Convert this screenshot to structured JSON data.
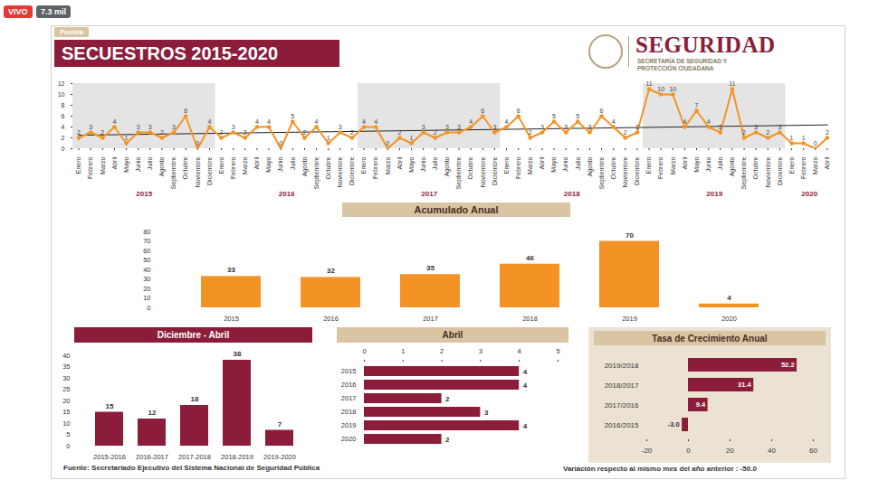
{
  "stream": {
    "live": "VIVO",
    "viewers": "7.3 mil"
  },
  "header": {
    "tag": "Puebla",
    "title": "SECUESTROS 2015-2020",
    "logo": "SEGURIDAD",
    "logo_subtitle": "SECRETARÍA DE SEGURIDAD Y PROTECCIÓN CIUDADANA"
  },
  "chart_data": [
    {
      "type": "line",
      "categories": [
        "Enero",
        "Febrero",
        "Marzo",
        "Abril",
        "Mayo",
        "Junio",
        "Julio",
        "Agosto",
        "Septiembre",
        "Octubre",
        "Noviembre",
        "Diciembre",
        "Enero",
        "Febrero",
        "Marzo",
        "Abril",
        "Mayo",
        "Junio",
        "Julio",
        "Agosto",
        "Septiembre",
        "Octubre",
        "Noviembre",
        "Diciembre",
        "Enero",
        "Febrero",
        "Marzo",
        "Abril",
        "Mayo",
        "Junio",
        "Julio",
        "Agosto",
        "Septiembre",
        "Octubre",
        "Noviembre",
        "Diciembre",
        "Enero",
        "Febrero",
        "Marzo",
        "Abril",
        "Mayo",
        "Junio",
        "Julio",
        "Agosto",
        "Septiembre",
        "Octubre",
        "Noviembre",
        "Diciembre",
        "Enero",
        "Febrero",
        "Marzo",
        "Abril",
        "Mayo",
        "Junio",
        "Julio",
        "Agosto",
        "Septiembre",
        "Octubre",
        "Noviembre",
        "Diciembre",
        "Enero",
        "Febrero",
        "Marzo",
        "Abril"
      ],
      "years": [
        "2015",
        "2015",
        "2015",
        "2015",
        "2015",
        "2015",
        "2015",
        "2015",
        "2015",
        "2015",
        "2015",
        "2015",
        "2016",
        "2016",
        "2016",
        "2016",
        "2016",
        "2016",
        "2016",
        "2016",
        "2016",
        "2016",
        "2016",
        "2016",
        "2017",
        "2017",
        "2017",
        "2017",
        "2017",
        "2017",
        "2017",
        "2017",
        "2017",
        "2017",
        "2017",
        "2017",
        "2018",
        "2018",
        "2018",
        "2018",
        "2018",
        "2018",
        "2018",
        "2018",
        "2018",
        "2018",
        "2018",
        "2018",
        "2019",
        "2019",
        "2019",
        "2019",
        "2019",
        "2019",
        "2019",
        "2019",
        "2019",
        "2019",
        "2019",
        "2019",
        "2020",
        "2020",
        "2020",
        "2020"
      ],
      "values": [
        2,
        3,
        2,
        4,
        1,
        3,
        3,
        2,
        3,
        6,
        0,
        4,
        2,
        3,
        2,
        4,
        4,
        0,
        5,
        2,
        4,
        1,
        3,
        2,
        4,
        4,
        0,
        2,
        1,
        3,
        2,
        3,
        3,
        4,
        6,
        3,
        4,
        6,
        2,
        3,
        5,
        3,
        5,
        3,
        6,
        4,
        2,
        3,
        11,
        10,
        10,
        4,
        7,
        4,
        3,
        11,
        2,
        3,
        2,
        3,
        1,
        1,
        0,
        2
      ],
      "color": "#f39325",
      "marker": "circle",
      "ylim": [
        0,
        12
      ],
      "yticks": [
        0,
        2,
        4,
        6,
        8,
        10,
        12
      ],
      "data_labels": true
    },
    {
      "type": "bar",
      "title": "Acumulado Anual",
      "categories": [
        "2015",
        "2016",
        "2017",
        "2018",
        "2019",
        "2020"
      ],
      "values": [
        33,
        32,
        35,
        46,
        70,
        4
      ],
      "color": "#f39325",
      "ylim": [
        0,
        80
      ],
      "yticks": [
        0,
        10,
        20,
        30,
        40,
        50,
        60,
        70,
        80
      ],
      "data_labels": true
    },
    {
      "type": "bar",
      "title": "Diciembre - Abril",
      "categories": [
        "2015-2016",
        "2016-2017",
        "2017-2018",
        "2018-2019",
        "2019-2020"
      ],
      "values": [
        15,
        12,
        18,
        38,
        7
      ],
      "color": "#8c1d3a",
      "ylim": [
        0,
        40
      ],
      "yticks": [
        0,
        5,
        10,
        15,
        20,
        25,
        30,
        35,
        40
      ],
      "data_labels": true
    },
    {
      "type": "bar",
      "orientation": "horizontal",
      "title": "Abril",
      "categories": [
        "2015",
        "2016",
        "2017",
        "2018",
        "2019",
        "2020"
      ],
      "values": [
        4,
        4,
        2,
        3,
        4,
        2
      ],
      "color": "#8c1d3a",
      "xlim": [
        0,
        5
      ],
      "xticks": [
        0,
        1,
        2,
        3,
        4,
        5
      ],
      "data_labels": true
    },
    {
      "type": "bar",
      "orientation": "horizontal",
      "title": "Tasa de Crecimiento Anual",
      "categories": [
        "2019/2018",
        "2018/2017",
        "2017/2016",
        "2016/2015"
      ],
      "values": [
        52.2,
        31.4,
        9.4,
        -3.0
      ],
      "value_labels": [
        "52.2",
        "31.4",
        "9.4",
        "-3.0"
      ],
      "color": "#8c1d3a",
      "xlim": [
        -20,
        60
      ],
      "xticks": [
        -20,
        0,
        20,
        40,
        60
      ],
      "data_labels": true
    }
  ],
  "source": "Fuente: Secretariado Ejecutivo del Sistema Nacional de Seguridad Pública",
  "note": "Variación respecto al mismo mes del año anterior : -50.0"
}
